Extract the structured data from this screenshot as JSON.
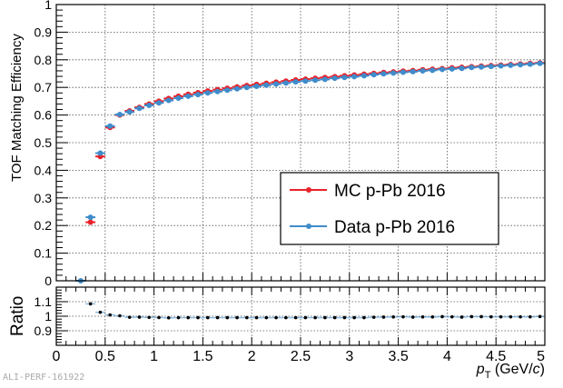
{
  "chart_data": [
    {
      "type": "scatter",
      "ylabel": "TOF Matching Efficiency",
      "xlim": [
        0,
        5
      ],
      "ylim": [
        0,
        1
      ],
      "yticks": [
        "0",
        "0.1",
        "0.2",
        "0.3",
        "0.4",
        "0.5",
        "0.6",
        "0.7",
        "0.8",
        "0.9",
        "1"
      ],
      "grid": true,
      "legend_placement": "center-right",
      "x": [
        0.25,
        0.35,
        0.45,
        0.55,
        0.65,
        0.75,
        0.85,
        0.95,
        1.05,
        1.15,
        1.25,
        1.35,
        1.45,
        1.55,
        1.65,
        1.75,
        1.85,
        1.95,
        2.05,
        2.15,
        2.25,
        2.35,
        2.45,
        2.55,
        2.65,
        2.75,
        2.85,
        2.95,
        3.05,
        3.15,
        3.25,
        3.35,
        3.45,
        3.55,
        3.65,
        3.75,
        3.85,
        3.95,
        4.05,
        4.15,
        4.25,
        4.35,
        4.45,
        4.55,
        4.65,
        4.75,
        4.85,
        4.95
      ],
      "series": [
        {
          "name": "MC p-Pb 2016",
          "color": "#e8222a",
          "values": [
            0.0,
            0.212,
            0.45,
            0.555,
            0.6,
            0.615,
            0.628,
            0.64,
            0.65,
            0.66,
            0.668,
            0.675,
            0.681,
            0.687,
            0.692,
            0.697,
            0.702,
            0.707,
            0.711,
            0.715,
            0.719,
            0.723,
            0.727,
            0.73,
            0.733,
            0.736,
            0.739,
            0.742,
            0.745,
            0.748,
            0.751,
            0.754,
            0.756,
            0.759,
            0.761,
            0.764,
            0.766,
            0.768,
            0.771,
            0.773,
            0.775,
            0.777,
            0.779,
            0.781,
            0.783,
            0.785,
            0.787,
            0.789
          ]
        },
        {
          "name": "Data p-Pb 2016",
          "color": "#3f8ccb",
          "values": [
            0.0,
            0.23,
            0.462,
            0.56,
            0.602,
            0.611,
            0.624,
            0.635,
            0.644,
            0.653,
            0.661,
            0.668,
            0.674,
            0.68,
            0.685,
            0.69,
            0.695,
            0.7,
            0.704,
            0.708,
            0.712,
            0.716,
            0.72,
            0.723,
            0.726,
            0.729,
            0.733,
            0.736,
            0.739,
            0.742,
            0.746,
            0.749,
            0.752,
            0.755,
            0.757,
            0.76,
            0.762,
            0.765,
            0.767,
            0.769,
            0.772,
            0.774,
            0.776,
            0.778,
            0.78,
            0.782,
            0.784,
            0.787
          ]
        }
      ]
    },
    {
      "type": "scatter",
      "ylabel": "Ratio",
      "xlabel_main": "p",
      "xlabel_sub": "T",
      "xlabel_unit_open": " (GeV/",
      "xlabel_unit_c": "c",
      "xlabel_unit_close": ")",
      "xlim": [
        0,
        5
      ],
      "ylim": [
        0.8,
        1.2
      ],
      "xticks": [
        "0",
        "0.5",
        "1",
        "1.5",
        "2",
        "2.5",
        "3",
        "3.5",
        "4",
        "4.5",
        "5"
      ],
      "yticks": [
        "0.9",
        "1",
        "1.1"
      ],
      "grid": true,
      "color": "#000000",
      "band_color": "#3f8ccb",
      "values": [
        null,
        1.085,
        1.027,
        1.009,
        1.003,
        0.993,
        0.994,
        0.992,
        0.991,
        0.989,
        0.99,
        0.99,
        0.99,
        0.99,
        0.99,
        0.99,
        0.99,
        0.99,
        0.99,
        0.99,
        0.99,
        0.99,
        0.99,
        0.99,
        0.99,
        0.99,
        0.99,
        0.99,
        0.99,
        0.99,
        0.993,
        0.994,
        0.995,
        0.996,
        0.994,
        0.995,
        0.995,
        0.997,
        0.996,
        0.994,
        0.997,
        0.997,
        0.996,
        0.996,
        0.996,
        0.996,
        0.996,
        0.998
      ]
    }
  ],
  "watermark": "ALI-PERF-161922"
}
